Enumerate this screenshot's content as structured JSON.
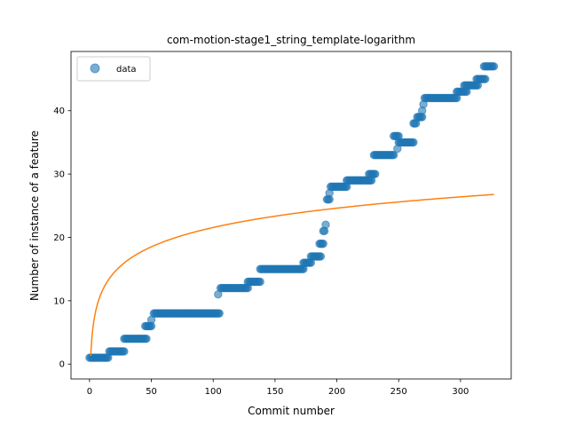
{
  "chart_data": {
    "type": "scatter",
    "title": "com-motion-stage1_string_template-logarithm",
    "xlabel": "Commit number",
    "ylabel": "Number of instance of a feature",
    "xlim": [
      -15,
      341
    ],
    "ylim": [
      -2.35,
      49.35
    ],
    "xticks": [
      0,
      50,
      100,
      150,
      200,
      250,
      300
    ],
    "yticks": [
      0,
      10,
      20,
      30,
      40
    ],
    "grid": false,
    "legend": {
      "position": "top-left",
      "entries": [
        "data"
      ]
    },
    "colors": {
      "data": "#1f77b4",
      "fit": "#ff7f0e"
    },
    "series": [
      {
        "name": "data",
        "kind": "scatter",
        "segments": [
          {
            "x_start": 0,
            "x_end": 15,
            "y": 1
          },
          {
            "x_start": 16,
            "x_end": 28,
            "y": 2
          },
          {
            "x_start": 28,
            "x_end": 46,
            "y": 4
          },
          {
            "x_start": 45,
            "x_end": 50,
            "y": 6
          },
          {
            "x_start": 50,
            "x_end": 50,
            "y": 7
          },
          {
            "x_start": 52,
            "x_end": 105,
            "y": 8
          },
          {
            "x_start": 104,
            "x_end": 104,
            "y": 11
          },
          {
            "x_start": 106,
            "x_end": 128,
            "y": 12
          },
          {
            "x_start": 128,
            "x_end": 138,
            "y": 13
          },
          {
            "x_start": 138,
            "x_end": 173,
            "y": 15
          },
          {
            "x_start": 173,
            "x_end": 179,
            "y": 16
          },
          {
            "x_start": 179,
            "x_end": 187,
            "y": 17
          },
          {
            "x_start": 186,
            "x_end": 189,
            "y": 19
          },
          {
            "x_start": 189,
            "x_end": 190,
            "y": 21
          },
          {
            "x_start": 191,
            "x_end": 191,
            "y": 22
          },
          {
            "x_start": 192,
            "x_end": 194,
            "y": 26
          },
          {
            "x_start": 194,
            "x_end": 194,
            "y": 27
          },
          {
            "x_start": 195,
            "x_end": 208,
            "y": 28
          },
          {
            "x_start": 208,
            "x_end": 228,
            "y": 29
          },
          {
            "x_start": 226,
            "x_end": 231,
            "y": 30
          },
          {
            "x_start": 230,
            "x_end": 246,
            "y": 33
          },
          {
            "x_start": 246,
            "x_end": 250,
            "y": 36
          },
          {
            "x_start": 249,
            "x_end": 249,
            "y": 34
          },
          {
            "x_start": 250,
            "x_end": 262,
            "y": 35
          },
          {
            "x_start": 262,
            "x_end": 264,
            "y": 38
          },
          {
            "x_start": 265,
            "x_end": 269,
            "y": 39
          },
          {
            "x_start": 269,
            "x_end": 269,
            "y": 40
          },
          {
            "x_start": 270,
            "x_end": 270,
            "y": 41
          },
          {
            "x_start": 271,
            "x_end": 297,
            "y": 42
          },
          {
            "x_start": 297,
            "x_end": 305,
            "y": 43
          },
          {
            "x_start": 303,
            "x_end": 314,
            "y": 44
          },
          {
            "x_start": 313,
            "x_end": 320,
            "y": 45
          },
          {
            "x_start": 319,
            "x_end": 327,
            "y": 47
          }
        ]
      },
      {
        "name": "",
        "kind": "line",
        "model": "y = a*ln(x) + b",
        "params": {
          "a": 4.4,
          "b": 1.3
        },
        "x_range": [
          1,
          327
        ]
      }
    ]
  }
}
